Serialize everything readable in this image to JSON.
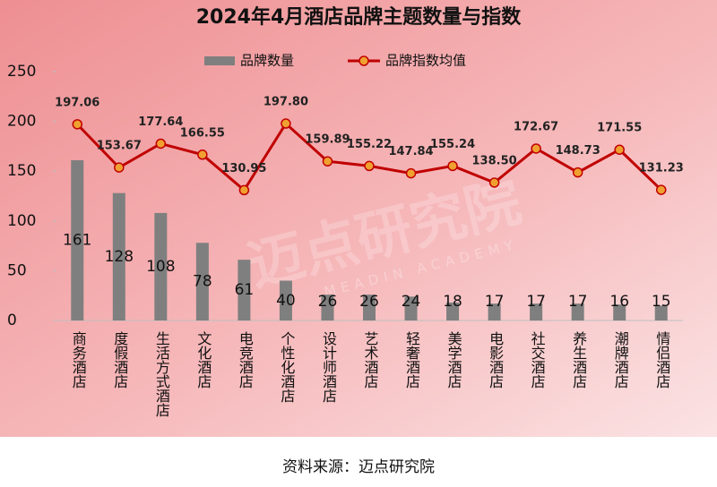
{
  "chart_data": {
    "type": "bar-line",
    "title": "2024年4月酒店品牌主题数量与指数",
    "source": "资料来源：迈点研究院",
    "watermark": "迈点研究院",
    "watermark_sub": "MEADIN ACADEMY",
    "categories": [
      "商务酒店",
      "度假酒店",
      "生活方式酒店",
      "文化酒店",
      "电竞酒店",
      "个性化酒店",
      "设计师酒店",
      "艺术酒店",
      "轻奢酒店",
      "美学酒店",
      "电影酒店",
      "社交酒店",
      "养生酒店",
      "潮牌酒店",
      "情侣酒店"
    ],
    "series": [
      {
        "name": "品牌数量",
        "type": "bar",
        "color": "#7f7f7f",
        "values": [
          161,
          128,
          108,
          78,
          61,
          40,
          26,
          26,
          24,
          18,
          17,
          17,
          17,
          16,
          15
        ]
      },
      {
        "name": "品牌指数均值",
        "type": "line",
        "color": "#c00000",
        "marker_color": "#f0a030",
        "values": [
          197.06,
          153.67,
          177.64,
          166.55,
          130.95,
          197.8,
          159.89,
          155.22,
          147.84,
          155.24,
          138.5,
          172.67,
          148.73,
          171.55,
          131.23
        ],
        "value_labels": [
          "197.06",
          "153.67",
          "177.64",
          "166.55",
          "130.95",
          "197.80",
          "159.89",
          "155.22",
          "147.84",
          "155.24",
          "138.50",
          "172.67",
          "148.73",
          "171.55",
          "131.23"
        ]
      }
    ],
    "ylim": [
      0,
      250
    ],
    "yticks": [
      0,
      50,
      100,
      150,
      200,
      250
    ],
    "legend": "top"
  }
}
